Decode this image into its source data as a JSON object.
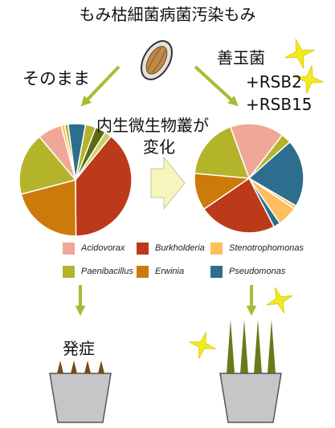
{
  "texts": {
    "title": "もみ枯細菌病菌汚染もみ",
    "left_label": "そのまま",
    "right_label_1": "善玉菌",
    "right_label_2": "+RSB2",
    "right_label_3": "+RSB15",
    "center_label_1": "内生微生物叢が",
    "center_label_2": "変化",
    "onset_label": "発症"
  },
  "legend": [
    {
      "label": "Acidovorax",
      "color": "#f0a896"
    },
    {
      "label": "Burkholderia",
      "color": "#bb3a1a"
    },
    {
      "label": "Stenotrophomonas",
      "color": "#fdbf5e"
    },
    {
      "label": "Paenibacillus",
      "color": "#b3b42a"
    },
    {
      "label": "Erwinia",
      "color": "#cc7a0a"
    },
    {
      "label": "Pseudomonas",
      "color": "#2d6e8e"
    }
  ],
  "icons": [
    "rice-seed-icon",
    "arrow-icon",
    "sparkle-icon",
    "flower-pot-icon",
    "seedling-icon"
  ],
  "colors": {
    "arrow_green": "#a5bd34",
    "center_arrow_fill": "#f6f5bd",
    "pot_fill": "#c6c6c6",
    "sprout_withered": "#7a4a16",
    "sprout_healthy": "#6b7a18",
    "sparkle": "#f2ea20"
  },
  "chart_data": [
    {
      "type": "pie",
      "title": "",
      "series": [
        {
          "values": [
            {
              "label": "Acidovorax",
              "value": 7,
              "color": "#f0a896"
            },
            {
              "label": "",
              "value": 1,
              "color": "#fdbf5e"
            },
            {
              "label": "",
              "value": 1,
              "color": "#b3b42a"
            },
            {
              "label": "Pseudomonas",
              "value": 5,
              "color": "#2d6e8e"
            },
            {
              "label": "",
              "value": 3,
              "color": "#b3b42a"
            },
            {
              "label": "",
              "value": 3,
              "color": "#5c6a12"
            },
            {
              "label": "",
              "value": 2,
              "color": "#d0ce6a"
            },
            {
              "label": "Burkholderia",
              "value": 39,
              "color": "#bb3a1a"
            },
            {
              "label": "Erwinia",
              "value": 21,
              "color": "#cc7a0a"
            },
            {
              "label": "Paenibacillus",
              "value": 18,
              "color": "#b3b42a"
            }
          ]
        }
      ]
    },
    {
      "type": "pie",
      "title": "",
      "series": [
        {
          "values": [
            {
              "label": "Acidovorax",
              "value": 16,
              "color": "#f0a896"
            },
            {
              "label": "",
              "value": 3,
              "color": "#b3b42a"
            },
            {
              "label": "Pseudomonas",
              "value": 20,
              "color": "#2d6e8e"
            },
            {
              "label": "",
              "value": 1,
              "color": "#fdbf5e"
            },
            {
              "label": "Stenotrophomonas",
              "value": 6,
              "color": "#fdbf5e"
            },
            {
              "label": "",
              "value": 2,
              "color": "#2d6e8e"
            },
            {
              "label": "Burkholderia",
              "value": 23,
              "color": "#bb3a1a"
            },
            {
              "label": "Erwinia",
              "value": 11,
              "color": "#cc7a0a"
            },
            {
              "label": "Paenibacillus",
              "value": 18,
              "color": "#b3b42a"
            }
          ]
        }
      ]
    }
  ]
}
